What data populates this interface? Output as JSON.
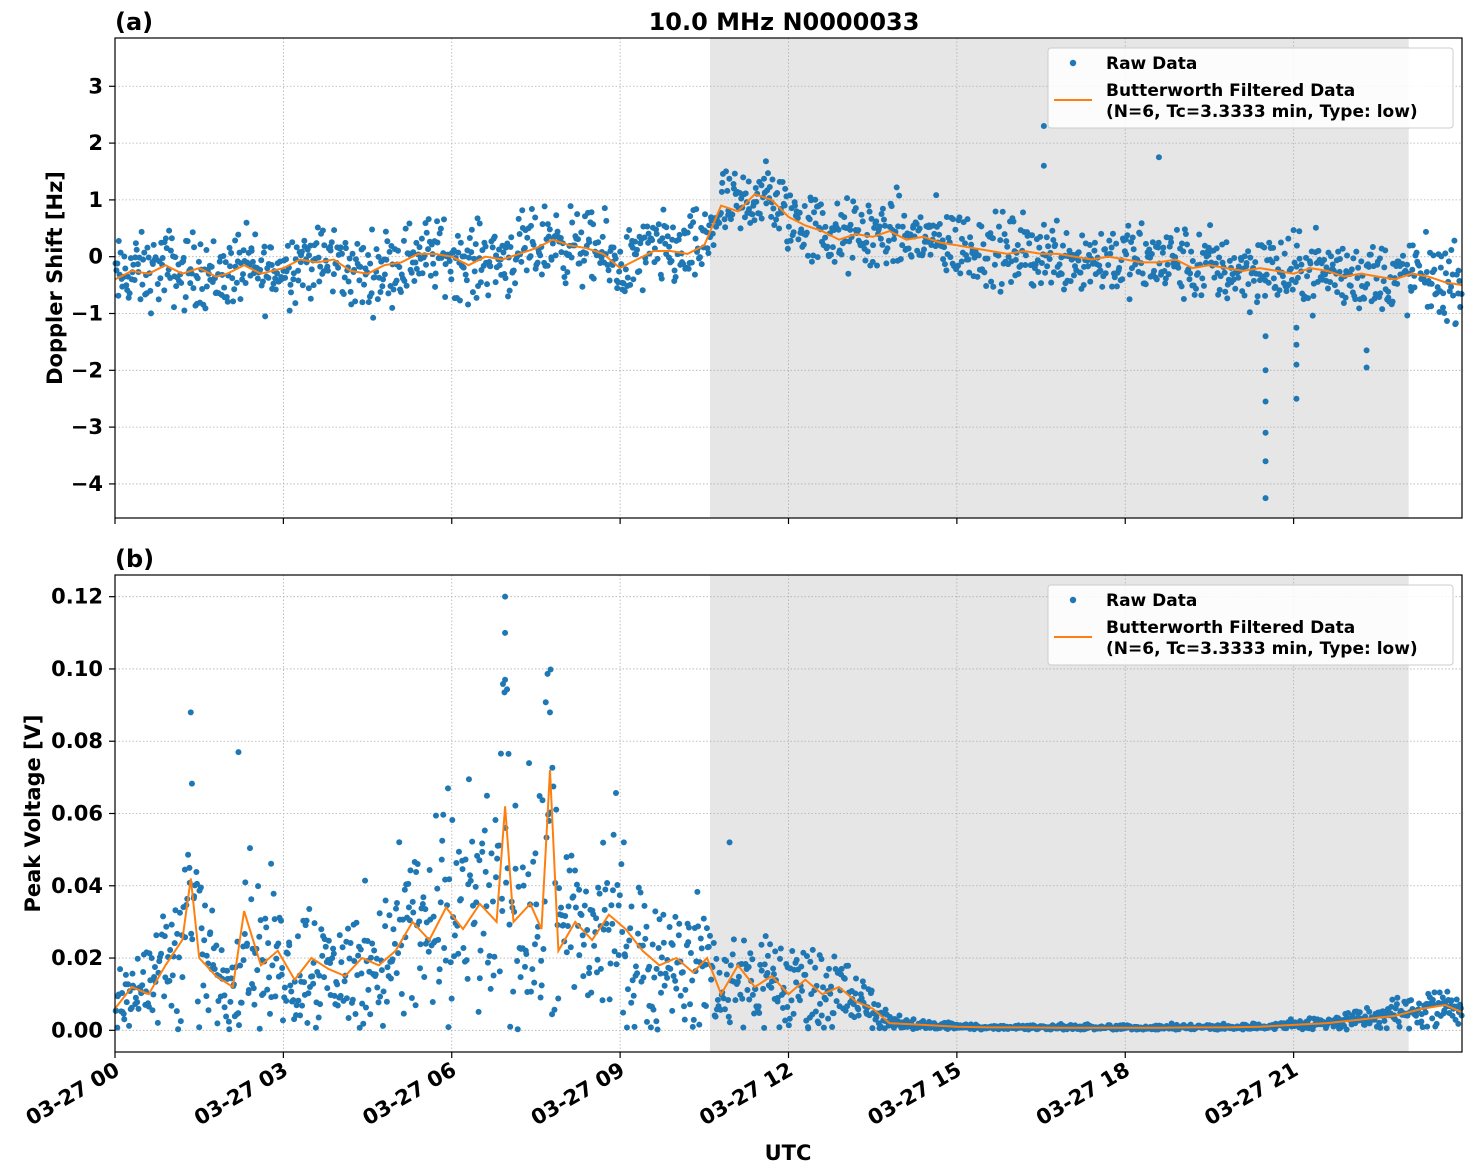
{
  "figure": {
    "title": "10.0 MHz N0000033",
    "shared_xlabel": "UTC"
  },
  "colors": {
    "raw": "#1f77b4",
    "filtered": "#ff7f0e",
    "shade": "#e6e6e6",
    "grid": "#b0b0b0"
  },
  "chart_data": [
    {
      "type": "scatter",
      "panel_tag": "(a)",
      "title": "10.0 MHz N0000033",
      "xlabel": "",
      "ylabel": "Doppler Shift [Hz]",
      "xlim": [
        0,
        24
      ],
      "x_unit": "hours UTC, 2024-03-27",
      "ylim": [
        -4.6,
        3.85
      ],
      "yticks": [
        -4,
        -3,
        -2,
        -1,
        0,
        1,
        2,
        3
      ],
      "ytick_labels": [
        "−4",
        "−3",
        "−2",
        "−1",
        "0",
        "1",
        "2",
        "3"
      ],
      "xticks": [
        0,
        3,
        6,
        9,
        12,
        15,
        18,
        21
      ],
      "xtick_labels": [
        "03-27 00",
        "03-27 03",
        "03-27 06",
        "03-27 09",
        "03-27 12",
        "03-27 15",
        "03-27 18",
        "03-27 21"
      ],
      "show_xtick_labels": false,
      "grid": true,
      "shaded_region": [
        10.6,
        23.05
      ],
      "legend": {
        "position": "top-right",
        "entries": [
          {
            "label": "Raw Data",
            "marker": "dot"
          },
          {
            "label": "Butterworth Filtered Data",
            "label2": "(N=6, Tc=3.3333 min, Type: low)",
            "marker": "line"
          }
        ]
      },
      "series": [
        {
          "name": "Butterworth Filtered Data",
          "style": "line",
          "x": [
            0.0,
            0.3,
            0.6,
            0.9,
            1.2,
            1.5,
            1.8,
            2.0,
            2.3,
            2.6,
            3.0,
            3.3,
            3.6,
            3.9,
            4.2,
            4.5,
            4.8,
            5.1,
            5.4,
            5.7,
            6.0,
            6.3,
            6.6,
            6.9,
            7.2,
            7.5,
            7.8,
            8.1,
            8.4,
            8.7,
            9.0,
            9.3,
            9.6,
            9.9,
            10.2,
            10.5,
            10.8,
            11.1,
            11.4,
            11.7,
            12.0,
            12.3,
            12.6,
            12.9,
            13.2,
            13.5,
            13.8,
            14.1,
            14.4,
            14.7,
            15.0,
            15.3,
            15.6,
            15.9,
            16.2,
            16.5,
            16.8,
            17.1,
            17.4,
            17.7,
            18.0,
            18.3,
            18.6,
            18.9,
            19.2,
            19.5,
            19.8,
            20.1,
            20.4,
            20.7,
            21.0,
            21.3,
            21.6,
            21.9,
            22.2,
            22.5,
            22.8,
            23.1,
            23.4,
            23.7,
            24.0
          ],
          "y": [
            -0.4,
            -0.25,
            -0.3,
            -0.15,
            -0.3,
            -0.2,
            -0.35,
            -0.3,
            -0.15,
            -0.3,
            -0.2,
            -0.05,
            -0.1,
            -0.05,
            -0.25,
            -0.3,
            -0.15,
            -0.1,
            0.05,
            0.05,
            0.0,
            -0.15,
            0.0,
            -0.05,
            0.05,
            0.15,
            0.3,
            0.2,
            0.15,
            0.05,
            -0.2,
            -0.05,
            0.1,
            0.1,
            0.05,
            0.2,
            0.9,
            0.8,
            1.1,
            1.0,
            0.7,
            0.55,
            0.45,
            0.3,
            0.4,
            0.35,
            0.45,
            0.3,
            0.35,
            0.25,
            0.2,
            0.15,
            0.1,
            0.05,
            0.1,
            0.05,
            0.05,
            0.0,
            -0.05,
            0.0,
            -0.05,
            -0.1,
            -0.1,
            -0.05,
            -0.2,
            -0.15,
            -0.2,
            -0.25,
            -0.2,
            -0.25,
            -0.3,
            -0.2,
            -0.25,
            -0.35,
            -0.3,
            -0.35,
            -0.4,
            -0.3,
            -0.35,
            -0.45,
            -0.5
          ]
        },
        {
          "name": "Raw Data",
          "style": "dots",
          "outliers_x": [
            16.55,
            16.55,
            18.6,
            20.5,
            20.5,
            20.5,
            20.5,
            20.5,
            20.5,
            21.05,
            21.05,
            21.05,
            21.05,
            22.3,
            22.3
          ],
          "outliers_y": [
            2.3,
            1.6,
            1.75,
            -1.4,
            -2.0,
            -2.55,
            -3.1,
            -3.6,
            -4.25,
            -1.25,
            -1.55,
            -1.9,
            -2.5,
            -1.65,
            -1.95
          ]
        }
      ]
    },
    {
      "type": "scatter",
      "panel_tag": "(b)",
      "title": "",
      "xlabel": "UTC",
      "ylabel": "Peak Voltage [V]",
      "xlim": [
        0,
        24
      ],
      "x_unit": "hours UTC, 2024-03-27",
      "ylim": [
        -0.006,
        0.126
      ],
      "yticks": [
        0.0,
        0.02,
        0.04,
        0.06,
        0.08,
        0.1,
        0.12
      ],
      "ytick_labels": [
        "0.00",
        "0.02",
        "0.04",
        "0.06",
        "0.08",
        "0.10",
        "0.12"
      ],
      "xticks": [
        0,
        3,
        6,
        9,
        12,
        15,
        18,
        21
      ],
      "xtick_labels": [
        "03-27 00",
        "03-27 03",
        "03-27 06",
        "03-27 09",
        "03-27 12",
        "03-27 15",
        "03-27 18",
        "03-27 21"
      ],
      "show_xtick_labels": true,
      "grid": true,
      "shaded_region": [
        10.6,
        23.05
      ],
      "legend": {
        "position": "top-right",
        "entries": [
          {
            "label": "Raw Data",
            "marker": "dot"
          },
          {
            "label": "Butterworth Filtered Data",
            "label2": "(N=6, Tc=3.3333 min, Type: low)",
            "marker": "line"
          }
        ]
      },
      "series": [
        {
          "name": "Butterworth Filtered Data",
          "style": "line",
          "x": [
            0.0,
            0.3,
            0.6,
            0.9,
            1.2,
            1.35,
            1.5,
            1.8,
            2.1,
            2.3,
            2.6,
            2.9,
            3.2,
            3.5,
            3.8,
            4.1,
            4.4,
            4.7,
            5.0,
            5.3,
            5.6,
            5.9,
            6.2,
            6.5,
            6.8,
            6.95,
            7.1,
            7.4,
            7.6,
            7.75,
            7.9,
            8.2,
            8.5,
            8.8,
            9.1,
            9.4,
            9.7,
            10.0,
            10.3,
            10.55,
            10.8,
            11.1,
            11.4,
            11.7,
            12.0,
            12.3,
            12.6,
            12.9,
            13.2,
            13.5,
            13.8,
            14.4,
            15.0,
            15.6,
            16.2,
            16.8,
            17.4,
            18.0,
            18.6,
            19.2,
            19.8,
            20.4,
            21.0,
            21.6,
            22.2,
            22.8,
            23.3,
            23.7,
            24.0
          ],
          "y": [
            0.006,
            0.012,
            0.01,
            0.018,
            0.025,
            0.042,
            0.02,
            0.015,
            0.012,
            0.033,
            0.018,
            0.022,
            0.014,
            0.02,
            0.017,
            0.015,
            0.02,
            0.018,
            0.022,
            0.03,
            0.025,
            0.034,
            0.028,
            0.035,
            0.03,
            0.062,
            0.03,
            0.035,
            0.028,
            0.072,
            0.022,
            0.03,
            0.025,
            0.032,
            0.028,
            0.022,
            0.018,
            0.02,
            0.016,
            0.02,
            0.01,
            0.018,
            0.012,
            0.015,
            0.01,
            0.014,
            0.01,
            0.012,
            0.008,
            0.006,
            0.002,
            0.0015,
            0.001,
            0.0008,
            0.0008,
            0.0007,
            0.0007,
            0.0007,
            0.0007,
            0.0008,
            0.0008,
            0.001,
            0.0015,
            0.002,
            0.003,
            0.004,
            0.006,
            0.007,
            0.005
          ]
        },
        {
          "name": "Raw Data",
          "style": "dots",
          "outliers_x": [
            6.95,
            6.95,
            6.95,
            7.75,
            1.35,
            2.2,
            10.95
          ],
          "outliers_y": [
            0.12,
            0.11,
            0.097,
            0.088,
            0.088,
            0.077,
            0.052
          ]
        }
      ]
    }
  ]
}
